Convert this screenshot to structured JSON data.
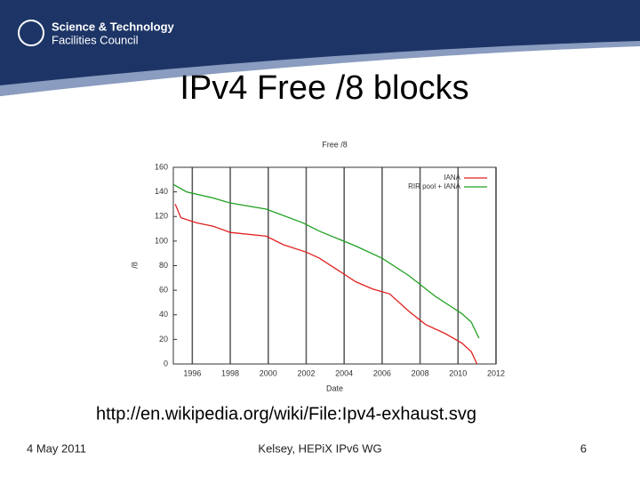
{
  "header": {
    "org_line1": "Science & Technology",
    "org_line2": "Facilities Council"
  },
  "title": "IPv4 Free /8 blocks",
  "chart_data": {
    "type": "line",
    "title": "Free /8",
    "x_label": "Date",
    "y_label": "/8",
    "xlim": [
      1995,
      2012
    ],
    "xticks": [
      1996,
      1998,
      2000,
      2002,
      2004,
      2006,
      2008,
      2010,
      2012
    ],
    "ylim": [
      0,
      160
    ],
    "yticks": [
      0,
      20,
      40,
      60,
      80,
      100,
      120,
      140,
      160
    ],
    "grid": "x",
    "legend": "top-right",
    "series": [
      {
        "name": "IANA",
        "color": "#e02020",
        "x": [
          1995.1,
          1995.4,
          1996.2,
          1997.1,
          1998,
          1999.9,
          2000.8,
          2002,
          2002.7,
          2003.6,
          2004.6,
          2005.5,
          2006.4,
          2007.4,
          2008.3,
          2009.3,
          2010.2,
          2010.7,
          2011
        ],
        "values": [
          130,
          119,
          115,
          112,
          107,
          104,
          97,
          91,
          86,
          77,
          67,
          61,
          57,
          43,
          32,
          25,
          17,
          10,
          0
        ]
      },
      {
        "name": "RIR pool + IANA",
        "color": "#20a020",
        "x": [
          1995,
          1995.7,
          1997.1,
          1998,
          1999.9,
          2001.8,
          2002.7,
          2004.6,
          2006,
          2007.4,
          2008.8,
          2010.2,
          2010.7,
          2011.1
        ],
        "values": [
          146,
          140,
          135,
          131,
          126,
          115,
          108,
          96,
          86,
          72,
          55,
          41,
          34,
          21
        ]
      }
    ]
  },
  "caption": "http://en.wikipedia.org/wiki/File:Ipv4-exhaust.svg",
  "footer": {
    "date": "4 May 2011",
    "author": "Kelsey, HEPiX IPv6 WG",
    "page": "6"
  }
}
